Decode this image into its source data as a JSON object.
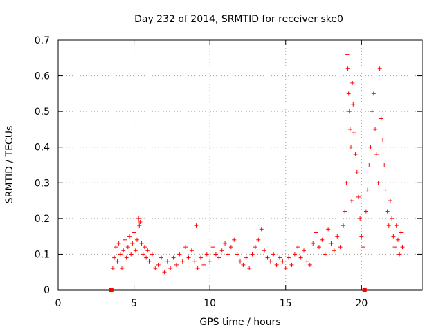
{
  "chart_data": {
    "type": "scatter",
    "title": "Day 232 of 2014, SRMTID for receiver ske0",
    "xlabel": "GPS time / hours",
    "ylabel": "SRMTID / TECUs",
    "xlim": [
      0,
      24
    ],
    "ylim": [
      0,
      0.7
    ],
    "xticks": [
      0,
      5,
      10,
      15,
      20
    ],
    "xtick_labels": [
      "0",
      "5",
      "10",
      "15",
      "20"
    ],
    "yticks": [
      0,
      0.1,
      0.2,
      0.3,
      0.4,
      0.5,
      0.6,
      0.7
    ],
    "ytick_labels": [
      "0",
      "0.1",
      "0.2",
      "0.3",
      "0.4",
      "0.5",
      "0.6",
      "0.7"
    ],
    "grid": true,
    "marker": "+",
    "color": "#ff0000",
    "zero_markers": [
      3.5,
      20.2
    ],
    "series": [
      {
        "name": "SRMTID",
        "points": [
          [
            3.6,
            0.06
          ],
          [
            3.7,
            0.09
          ],
          [
            3.8,
            0.12
          ],
          [
            3.9,
            0.08
          ],
          [
            4.0,
            0.13
          ],
          [
            4.1,
            0.1
          ],
          [
            4.2,
            0.06
          ],
          [
            4.3,
            0.11
          ],
          [
            4.4,
            0.14
          ],
          [
            4.5,
            0.09
          ],
          [
            4.6,
            0.12
          ],
          [
            4.7,
            0.15
          ],
          [
            4.8,
            0.1
          ],
          [
            4.9,
            0.13
          ],
          [
            5.0,
            0.16
          ],
          [
            5.1,
            0.11
          ],
          [
            5.2,
            0.14
          ],
          [
            5.3,
            0.2
          ],
          [
            5.35,
            0.18
          ],
          [
            5.4,
            0.19
          ],
          [
            5.5,
            0.13
          ],
          [
            5.6,
            0.1
          ],
          [
            5.7,
            0.12
          ],
          [
            5.8,
            0.09
          ],
          [
            5.9,
            0.11
          ],
          [
            6.0,
            0.08
          ],
          [
            6.2,
            0.1
          ],
          [
            6.4,
            0.06
          ],
          [
            6.6,
            0.07
          ],
          [
            6.8,
            0.09
          ],
          [
            7.0,
            0.05
          ],
          [
            7.2,
            0.08
          ],
          [
            7.4,
            0.06
          ],
          [
            7.6,
            0.09
          ],
          [
            7.8,
            0.07
          ],
          [
            8.0,
            0.1
          ],
          [
            8.2,
            0.08
          ],
          [
            8.4,
            0.12
          ],
          [
            8.6,
            0.09
          ],
          [
            8.8,
            0.11
          ],
          [
            9.0,
            0.08
          ],
          [
            9.1,
            0.18
          ],
          [
            9.2,
            0.06
          ],
          [
            9.4,
            0.09
          ],
          [
            9.6,
            0.07
          ],
          [
            9.8,
            0.1
          ],
          [
            10.0,
            0.08
          ],
          [
            10.2,
            0.12
          ],
          [
            10.4,
            0.1
          ],
          [
            10.6,
            0.09
          ],
          [
            10.8,
            0.11
          ],
          [
            11.0,
            0.13
          ],
          [
            11.2,
            0.1
          ],
          [
            11.4,
            0.12
          ],
          [
            11.6,
            0.14
          ],
          [
            11.8,
            0.1
          ],
          [
            12.0,
            0.08
          ],
          [
            12.2,
            0.07
          ],
          [
            12.4,
            0.09
          ],
          [
            12.6,
            0.06
          ],
          [
            12.8,
            0.1
          ],
          [
            13.0,
            0.12
          ],
          [
            13.2,
            0.14
          ],
          [
            13.4,
            0.17
          ],
          [
            13.6,
            0.11
          ],
          [
            13.8,
            0.09
          ],
          [
            14.0,
            0.08
          ],
          [
            14.2,
            0.1
          ],
          [
            14.4,
            0.07
          ],
          [
            14.6,
            0.09
          ],
          [
            14.8,
            0.08
          ],
          [
            15.0,
            0.06
          ],
          [
            15.2,
            0.09
          ],
          [
            15.4,
            0.07
          ],
          [
            15.6,
            0.1
          ],
          [
            15.8,
            0.12
          ],
          [
            16.0,
            0.09
          ],
          [
            16.2,
            0.11
          ],
          [
            16.4,
            0.08
          ],
          [
            16.6,
            0.07
          ],
          [
            16.8,
            0.13
          ],
          [
            17.0,
            0.16
          ],
          [
            17.2,
            0.12
          ],
          [
            17.4,
            0.14
          ],
          [
            17.6,
            0.1
          ],
          [
            17.8,
            0.17
          ],
          [
            18.0,
            0.13
          ],
          [
            18.2,
            0.11
          ],
          [
            18.4,
            0.15
          ],
          [
            18.6,
            0.12
          ],
          [
            18.8,
            0.18
          ],
          [
            18.9,
            0.22
          ],
          [
            19.0,
            0.3
          ],
          [
            19.05,
            0.66
          ],
          [
            19.1,
            0.62
          ],
          [
            19.15,
            0.55
          ],
          [
            19.2,
            0.5
          ],
          [
            19.25,
            0.45
          ],
          [
            19.3,
            0.4
          ],
          [
            19.35,
            0.25
          ],
          [
            19.4,
            0.58
          ],
          [
            19.45,
            0.52
          ],
          [
            19.5,
            0.44
          ],
          [
            19.6,
            0.38
          ],
          [
            19.7,
            0.33
          ],
          [
            19.8,
            0.26
          ],
          [
            19.9,
            0.2
          ],
          [
            20.0,
            0.15
          ],
          [
            20.1,
            0.12
          ],
          [
            20.3,
            0.22
          ],
          [
            20.4,
            0.28
          ],
          [
            20.5,
            0.35
          ],
          [
            20.6,
            0.4
          ],
          [
            20.7,
            0.5
          ],
          [
            20.8,
            0.55
          ],
          [
            20.9,
            0.45
          ],
          [
            21.0,
            0.38
          ],
          [
            21.1,
            0.3
          ],
          [
            21.2,
            0.62
          ],
          [
            21.3,
            0.48
          ],
          [
            21.4,
            0.42
          ],
          [
            21.5,
            0.35
          ],
          [
            21.6,
            0.28
          ],
          [
            21.7,
            0.22
          ],
          [
            21.8,
            0.18
          ],
          [
            21.9,
            0.25
          ],
          [
            22.0,
            0.2
          ],
          [
            22.1,
            0.15
          ],
          [
            22.2,
            0.12
          ],
          [
            22.3,
            0.18
          ],
          [
            22.4,
            0.14
          ],
          [
            22.5,
            0.1
          ],
          [
            22.6,
            0.16
          ],
          [
            22.7,
            0.12
          ]
        ]
      }
    ]
  }
}
